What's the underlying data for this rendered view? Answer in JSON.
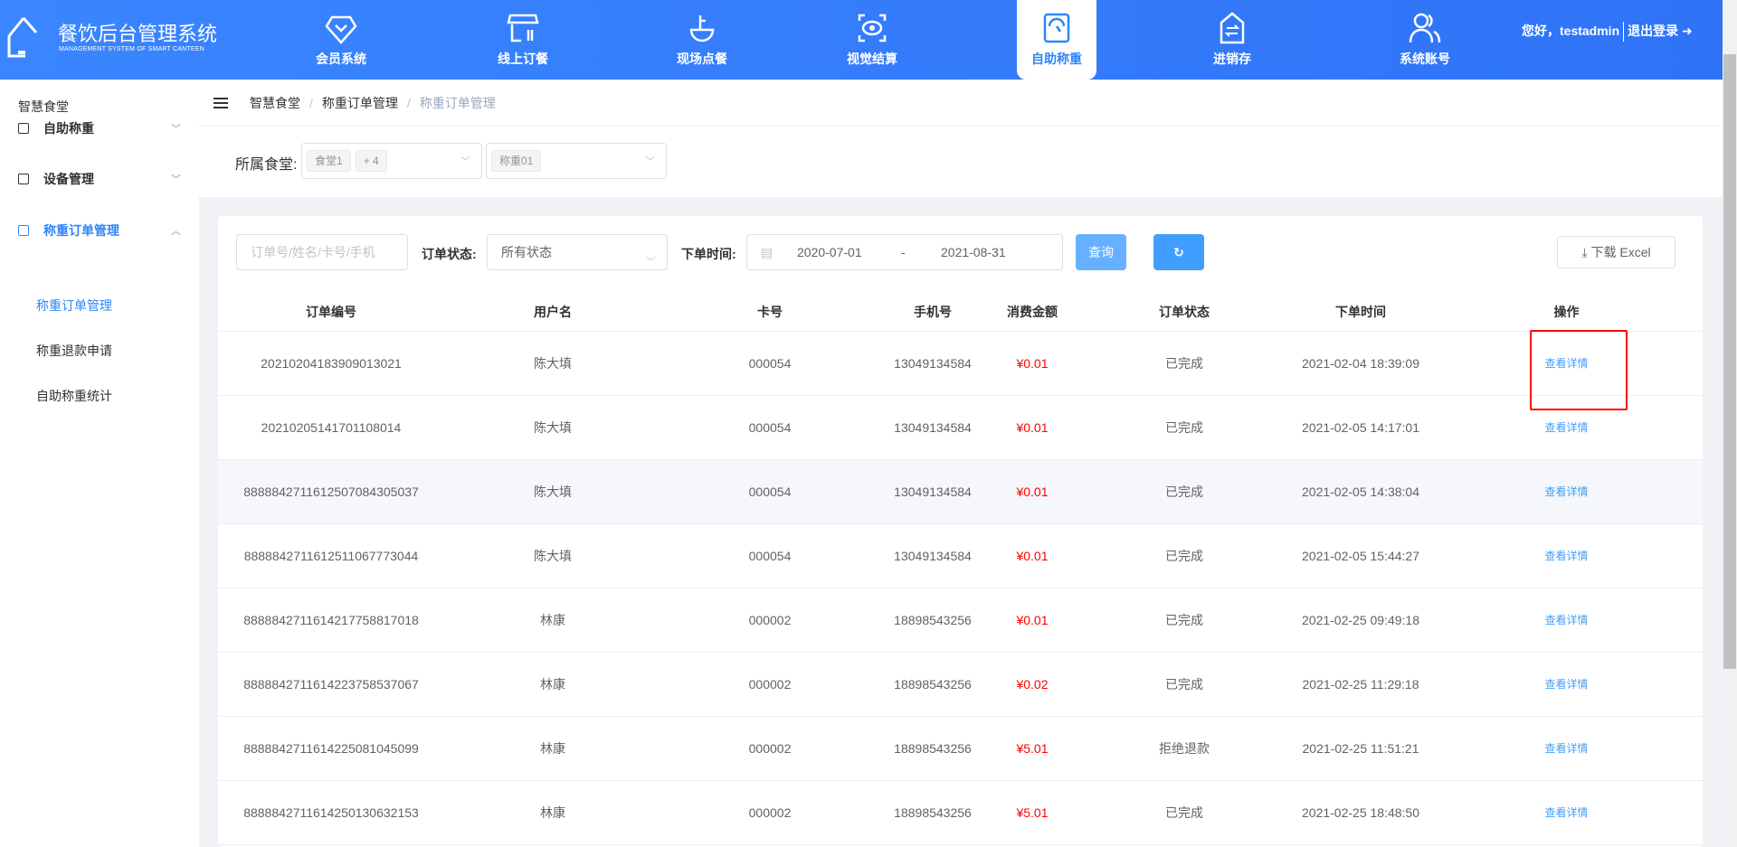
{
  "app": {
    "title": "餐饮后台管理系统",
    "subtitle": "MANAGEMENT SYSTEM OF SMART CANTEEN",
    "logo_text": "智慧食堂"
  },
  "nav": [
    {
      "label": "会员系统",
      "icon": "diamond-icon"
    },
    {
      "label": "线上订餐",
      "icon": "shop-icon"
    },
    {
      "label": "现场点餐",
      "icon": "bowl-icon"
    },
    {
      "label": "视觉结算",
      "icon": "eye-icon"
    },
    {
      "label": "自助称重",
      "icon": "scale-icon",
      "active": true
    },
    {
      "label": "进销存",
      "icon": "exchange-icon"
    },
    {
      "label": "系统账号",
      "icon": "users-icon"
    }
  ],
  "user": {
    "greeting": "您好，testadmin",
    "logout": "退出登录"
  },
  "sidebar": {
    "title": "智慧食堂",
    "menus": [
      {
        "label": "自助称重"
      },
      {
        "label": "设备管理"
      },
      {
        "label": "称重订单管理",
        "open": true
      }
    ],
    "submenu": [
      {
        "label": "称重订单管理",
        "active": true
      },
      {
        "label": "称重退款申请"
      },
      {
        "label": "自助称重统计"
      }
    ]
  },
  "breadcrumb": [
    "智慧食堂",
    "称重订单管理",
    "称重订单管理"
  ],
  "filter": {
    "label": "所属食堂:",
    "canteen_tags": [
      "食堂1",
      "+ 4"
    ],
    "scale_tag": "称重01"
  },
  "search": {
    "placeholder": "订单号/姓名/卡号/手机",
    "status_label": "订单状态:",
    "status_value": "所有状态",
    "time_label": "下单时间:",
    "date_start": "2020-07-01",
    "date_sep": "-",
    "date_end": "2021-08-31",
    "query": "查询",
    "download": "下载 Excel"
  },
  "colors": {
    "primary": "#2f86f6",
    "money": "#ff0000",
    "link": "#409eff"
  },
  "table": {
    "columns": [
      "订单编号",
      "用户名",
      "卡号",
      "手机号",
      "消费金额",
      "订单状态",
      "下单时间",
      "操作"
    ],
    "rows": [
      [
        "20210204183909013021",
        "陈大填",
        "000054",
        "13049134584",
        "¥0.01",
        "已完成",
        "2021-02-04 18:39:09",
        "查看详情"
      ],
      [
        "20210205141701108014",
        "陈大填",
        "000054",
        "13049134584",
        "¥0.01",
        "已完成",
        "2021-02-05 14:17:01",
        "查看详情"
      ],
      [
        "888884271161250708430503​7",
        "陈大填",
        "000054",
        "13049134584",
        "¥0.01",
        "已完成",
        "2021-02-05 14:38:04",
        "查看详情"
      ],
      [
        "8888842711612511067773044",
        "陈大填",
        "000054",
        "13049134584",
        "¥0.01",
        "已完成",
        "2021-02-05 15:44:27",
        "查看详情"
      ],
      [
        "8888842711614217758817018",
        "林康",
        "000002",
        "18898543256",
        "¥0.01",
        "已完成",
        "2021-02-25 09:49:18",
        "查看详情"
      ],
      [
        "8888842711614223758537067",
        "林康",
        "000002",
        "18898543256",
        "¥0.02",
        "已完成",
        "2021-02-25 11:29:18",
        "查看详情"
      ],
      [
        "8888842711614225081045099",
        "林康",
        "000002",
        "18898543256",
        "¥5.01",
        "拒绝退款",
        "2021-02-25 11:51:21",
        "查看详情"
      ],
      [
        "8888842711614250130632153",
        "林康",
        "000002",
        "18898543256",
        "¥5.01",
        "已完成",
        "2021-02-25 18:48:50",
        "查看详情"
      ]
    ]
  }
}
